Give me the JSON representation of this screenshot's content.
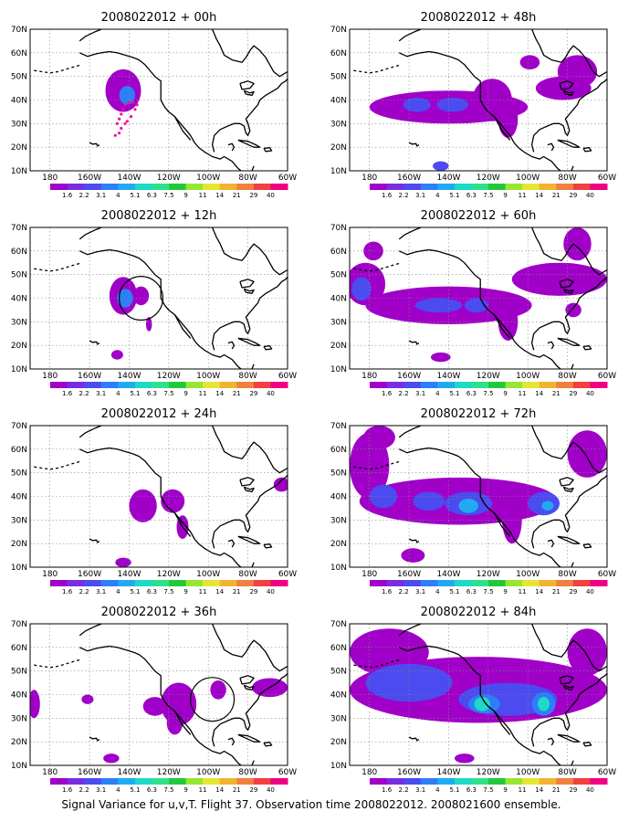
{
  "caption": "Signal Variance for u,v,T. Flight 37. Observation time 2008022012. 2008021600 ensemble.",
  "lon_labels": [
    "180",
    "160W",
    "140W",
    "120W",
    "100W",
    "80W",
    "60W"
  ],
  "lat_labels": [
    "10N",
    "20N",
    "30N",
    "40N",
    "50N",
    "60N",
    "70N"
  ],
  "colorbar": {
    "labels": [
      "1.6",
      "2.2",
      "3.1",
      "4",
      "5.1",
      "6.3",
      "7.5",
      "9",
      "11",
      "14",
      "21",
      "29",
      "40"
    ],
    "colors": [
      "#a000c8",
      "#7a2ce0",
      "#4b4bf0",
      "#2d7ef7",
      "#22aaf0",
      "#1ed8c8",
      "#2ee08a",
      "#22c83c",
      "#96e632",
      "#e6e632",
      "#f0b432",
      "#f08040",
      "#f04040",
      "#f00082"
    ]
  },
  "panels": [
    {
      "title": "2008022012 + 00h",
      "lead": "00h"
    },
    {
      "title": "2008022012 + 48h",
      "lead": "48h"
    },
    {
      "title": "2008022012 + 12h",
      "lead": "12h"
    },
    {
      "title": "2008022012 + 60h",
      "lead": "60h"
    },
    {
      "title": "2008022012 + 24h",
      "lead": "24h"
    },
    {
      "title": "2008022012 + 72h",
      "lead": "72h"
    },
    {
      "title": "2008022012 + 36h",
      "lead": "36h"
    },
    {
      "title": "2008022012 + 84h",
      "lead": "84h"
    }
  ]
}
